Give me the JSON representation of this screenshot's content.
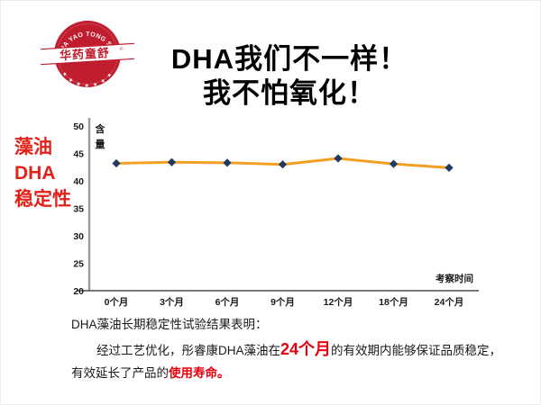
{
  "logo": {
    "arc_text": "HUA YAO TONG SHU",
    "band_text": "华药童舒",
    "registered_mark": "®",
    "stars": "★ ★ ★ ★ ★ ★ ★",
    "color": "#c01d2e"
  },
  "title": {
    "line1": "DHA我们不一样！",
    "line2": "我不怕氧化！"
  },
  "sidebar": {
    "line1": "藻油",
    "line2": "DHA",
    "line3": "稳定性",
    "color": "#e2231a"
  },
  "chart_data": {
    "type": "line",
    "categories": [
      "0个月",
      "3个月",
      "6个月",
      "9个月",
      "12个月",
      "18个月",
      "24个月"
    ],
    "values": [
      43.2,
      43.4,
      43.3,
      43.0,
      44.1,
      43.1,
      42.4
    ],
    "ylabel": "含量",
    "xlabel": "考察时间",
    "ylim": [
      20,
      50
    ],
    "yticks": [
      50,
      45,
      40,
      35,
      30,
      25,
      20
    ],
    "grid": false,
    "legend": "none",
    "line_color": "#f2a024",
    "marker": "diamond",
    "marker_color": "#1f3864",
    "axis_color": "#9a9a9a",
    "xaxis_color": "#4d4d4d",
    "tick_color": "#1a1a1a"
  },
  "caption": {
    "line1": "DHA藻油长期稳定性试验结果表明：",
    "line2_prefix": "经过工艺优化，彤睿康DHA藻油在",
    "line2_highlight": "24个月",
    "line2_suffix": "的有效期内能够保证品质稳定，",
    "line3_prefix": "有效延长了产品的",
    "line3_highlight": "使用寿命",
    "line3_suffix": "。",
    "highlight_color": "#e8000d"
  }
}
